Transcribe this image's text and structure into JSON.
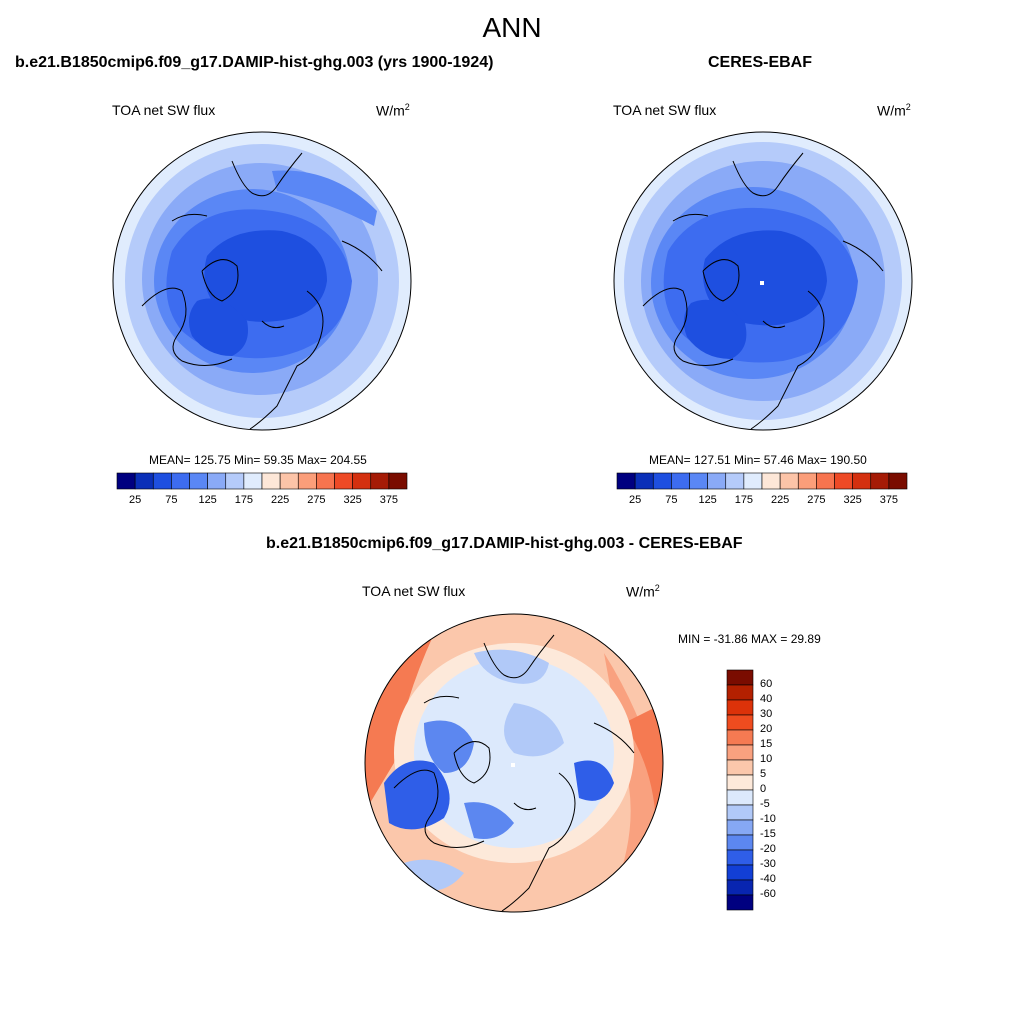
{
  "page_title": "ANN",
  "panels": [
    {
      "title": "b.e21.B1850cmip6.f09_g17.DAMIP-hist-ghg.003 (yrs 1900-1924)",
      "variable": "TOA net SW flux",
      "units_base": "W/m",
      "units_exp": "2",
      "stats": "MEAN= 125.75  Min=  59.35  Max= 204.55"
    },
    {
      "title": "CERES-EBAF",
      "variable": "TOA net SW flux",
      "units_base": "W/m",
      "units_exp": "2",
      "stats": "MEAN= 127.51  Min=  57.46  Max= 190.50"
    },
    {
      "title": "b.e21.B1850cmip6.f09_g17.DAMIP-hist-ghg.003 - CERES-EBAF",
      "variable": "TOA net SW flux",
      "units_base": "W/m",
      "units_exp": "2",
      "stats": "MIN = -31.86 MAX =  29.89"
    }
  ],
  "colorbar_h": {
    "labels": [
      "25",
      "75",
      "125",
      "175",
      "225",
      "275",
      "325",
      "375"
    ],
    "colors": [
      "#000080",
      "#0a2fb8",
      "#1e4fe0",
      "#3d6cf0",
      "#5a87f5",
      "#8aaaf7",
      "#b5cbfa",
      "#e0ecfd",
      "#fde7d8",
      "#fcc4a8",
      "#fb9e7a",
      "#f7744f",
      "#ee4a26",
      "#d4300f",
      "#a51b06",
      "#7a0c00"
    ]
  },
  "colorbar_v": {
    "labels": [
      "60",
      "40",
      "30",
      "20",
      "15",
      "10",
      "5",
      "0",
      "-5",
      "-10",
      "-15",
      "-20",
      "-30",
      "-40",
      "-60"
    ],
    "colors": [
      "#7a0c00",
      "#b32000",
      "#dc3209",
      "#ef4c1f",
      "#f57a52",
      "#f9a17f",
      "#fbc7ab",
      "#fde9da",
      "#dce9fc",
      "#b1c9f8",
      "#86a8f4",
      "#5c87f0",
      "#2f5ee8",
      "#123fd6",
      "#0825b0",
      "#000080"
    ]
  }
}
